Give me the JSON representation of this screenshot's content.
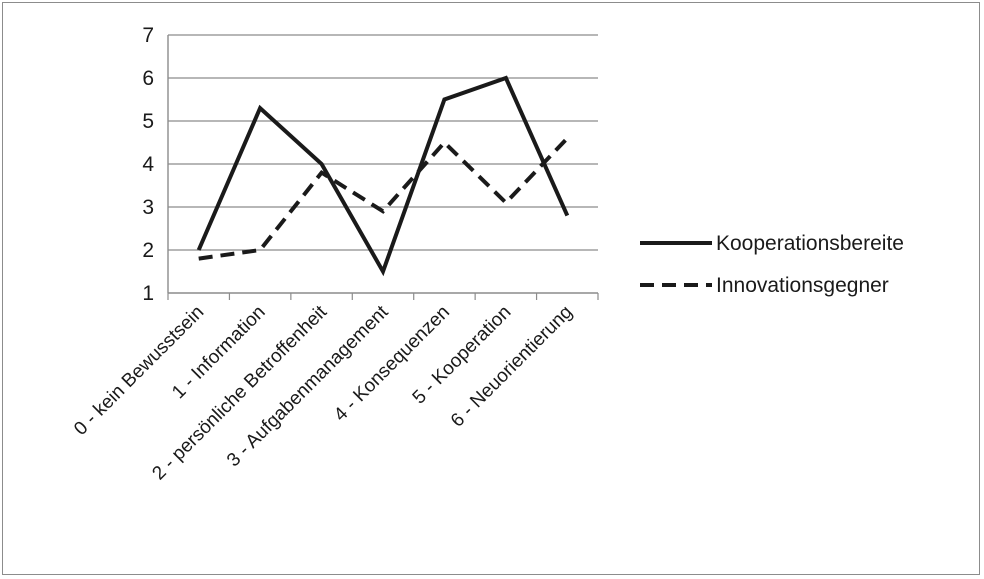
{
  "chart_data": {
    "type": "line",
    "title": "",
    "xlabel": "",
    "ylabel": "",
    "categories": [
      "0 - kein Bewusstsein",
      "1 - Information",
      "2 - persönliche Betroffenheit",
      "3 - Aufgabenmanagement",
      "4 - Konsequenzen",
      "5 - Kooperation",
      "6 - Neuorientierung"
    ],
    "ylim": [
      1,
      7
    ],
    "yticks": [
      1,
      2,
      3,
      4,
      5,
      6,
      7
    ],
    "grid": "horizontal",
    "legend_position": "right",
    "series": [
      {
        "name": "Kooperationsbereite",
        "values": [
          2.0,
          5.3,
          4.0,
          1.5,
          5.5,
          6.0,
          2.8
        ],
        "style": "solid",
        "color": "#1a1a1a"
      },
      {
        "name": "Innovationsgegner",
        "values": [
          1.8,
          2.0,
          3.8,
          2.9,
          4.5,
          3.1,
          4.6
        ],
        "style": "dashed",
        "color": "#1a1a1a"
      }
    ]
  }
}
